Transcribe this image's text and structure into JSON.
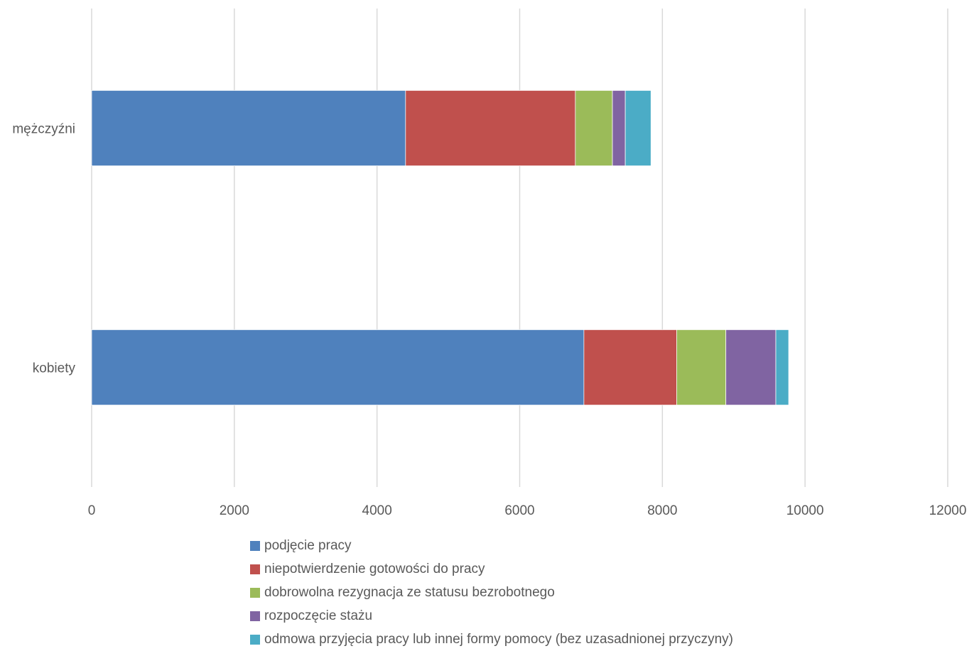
{
  "chart_data": {
    "type": "bar",
    "orientation": "horizontal",
    "stacked": true,
    "categories": [
      "mężczyźni",
      "kobiety"
    ],
    "series": [
      {
        "name": "podjęcie pracy",
        "color": "#4F81BD",
        "values": [
          4400,
          6900
        ]
      },
      {
        "name": "niepotwierdzenie gotowości do pracy",
        "color": "#C0504D",
        "values": [
          2380,
          1300
        ]
      },
      {
        "name": "dobrowolna rezygnacja ze statusu bezrobotnego",
        "color": "#9BBB59",
        "values": [
          520,
          690
        ]
      },
      {
        "name": "rozpoczęcie stażu",
        "color": "#8064A2",
        "values": [
          180,
          700
        ]
      },
      {
        "name": "odmowa przyjęcia pracy lub innej formy pomocy (bez uzasadnionej przyczyny)",
        "color": "#4BACC6",
        "values": [
          360,
          180
        ]
      }
    ],
    "xlim": [
      0,
      12000
    ],
    "xticks": [
      "0",
      "2000",
      "4000",
      "6000",
      "8000",
      "10000",
      "12000"
    ],
    "grid": true,
    "legend": "bottom"
  }
}
